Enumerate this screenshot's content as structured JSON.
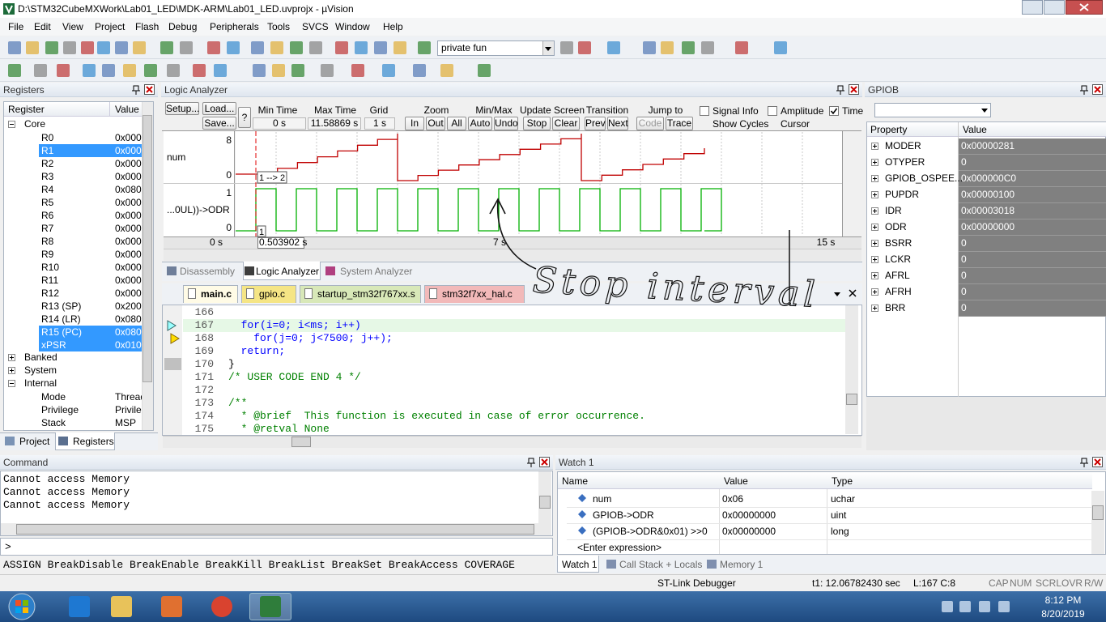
{
  "title_bar": {
    "title": "D:\\STM32CubeMXWork\\Lab01_LED\\MDK-ARM\\Lab01_LED.uvprojx - µVision"
  },
  "menu": [
    "File",
    "Edit",
    "View",
    "Project",
    "Flash",
    "Debug",
    "Peripherals",
    "Tools",
    "SVCS",
    "Window",
    "Help"
  ],
  "toolbar": {
    "find_combo": "private fun"
  },
  "registers_panel": {
    "title": "Registers",
    "columns": [
      "Register",
      "Value"
    ],
    "groups": [
      {
        "name": "Core",
        "items": [
          {
            "name": "R0",
            "value": "0x0000"
          },
          {
            "name": "R1",
            "value": "0x0000",
            "selected": true
          },
          {
            "name": "R2",
            "value": "0x0000"
          },
          {
            "name": "R3",
            "value": "0x0000"
          },
          {
            "name": "R4",
            "value": "0x0800"
          },
          {
            "name": "R5",
            "value": "0x0000"
          },
          {
            "name": "R6",
            "value": "0x0000"
          },
          {
            "name": "R7",
            "value": "0x0000"
          },
          {
            "name": "R8",
            "value": "0x0000"
          },
          {
            "name": "R9",
            "value": "0x0000"
          },
          {
            "name": "R10",
            "value": "0x0000"
          },
          {
            "name": "R11",
            "value": "0x0000"
          },
          {
            "name": "R12",
            "value": "0x0000"
          },
          {
            "name": "R13 (SP)",
            "value": "0x2000"
          },
          {
            "name": "R14 (LR)",
            "value": "0x0800"
          },
          {
            "name": "R15 (PC)",
            "value": "0x0800",
            "selected": true
          },
          {
            "name": "xPSR",
            "value": "0x0100",
            "selected": true
          }
        ]
      },
      {
        "name": "Banked"
      },
      {
        "name": "System"
      },
      {
        "name": "Internal",
        "items": [
          {
            "name": "Mode",
            "value": "Thread"
          },
          {
            "name": "Privilege",
            "value": "Privileg"
          },
          {
            "name": "Stack",
            "value": "MSP"
          }
        ]
      }
    ],
    "tabs": [
      "Project",
      "Registers"
    ]
  },
  "logic_analyzer": {
    "title": "Logic Analyzer",
    "buttons": {
      "setup": "Setup...",
      "load": "Load...",
      "save": "Save...",
      "help": "?"
    },
    "min_time": {
      "label": "Min Time",
      "value": "0 s"
    },
    "max_time": {
      "label": "Max Time",
      "value": "11.58869 s"
    },
    "grid": {
      "label": "Grid",
      "value": "1 s"
    },
    "groups": [
      {
        "label": "Zoom",
        "buttons": [
          "In",
          "Out",
          "All"
        ]
      },
      {
        "label": "Min/Max",
        "buttons": [
          "Auto",
          "Undo"
        ]
      },
      {
        "label": "Update Screen",
        "buttons": [
          "Stop",
          "Clear"
        ]
      },
      {
        "label": "Transition",
        "buttons": [
          "Prev",
          "Next"
        ]
      },
      {
        "label": "Jump to",
        "buttons": [
          "Code",
          "Trace"
        ]
      }
    ],
    "options": [
      {
        "label": "Signal Info",
        "checked": false
      },
      {
        "label": "Show Cycles"
      },
      {
        "label": "Amplitude",
        "checked": false
      },
      {
        "label": "Cursor"
      },
      {
        "label": "Time",
        "checked": true
      }
    ],
    "signals": [
      {
        "name": "num",
        "max": 8,
        "min": 0
      },
      {
        "name": "...0UL))->ODR",
        "max": 1,
        "min": 0
      }
    ],
    "cursor_labels": [
      "1 --> 2",
      "1"
    ],
    "cursor_time": "0.503902 s",
    "time_axis": [
      "0 s",
      "7 s",
      "15 s"
    ],
    "tabs": [
      "Disassembly",
      "Logic Analyzer",
      "System Analyzer"
    ]
  },
  "editor": {
    "tabs": [
      "main.c",
      "gpio.c",
      "startup_stm32f767xx.s",
      "stm32f7xx_hal.c"
    ],
    "lines": [
      {
        "number": 166
      },
      {
        "number": 167,
        "text": "  for(i=0; i<ms; i++)",
        "current": true
      },
      {
        "number": 168,
        "text": "    for(j=0; j<7500; j++);"
      },
      {
        "number": 169,
        "text": "  return;"
      },
      {
        "number": 170,
        "text": "}"
      },
      {
        "number": 171,
        "text": "/* USER CODE END 4 */"
      },
      {
        "number": 172
      },
      {
        "number": 173,
        "text": "/**"
      },
      {
        "number": 174,
        "text": "  * @brief  This function is executed in case of error occurrence."
      },
      {
        "number": 175,
        "text": "  * @retval None"
      }
    ]
  },
  "gpiob_panel": {
    "title": "GPIOB",
    "columns": [
      "Property",
      "Value"
    ],
    "rows": [
      {
        "name": "MODER",
        "value": "0x00000281"
      },
      {
        "name": "OTYPER",
        "value": "0"
      },
      {
        "name": "GPIOB_OSPEE...",
        "value": "0x000000C0"
      },
      {
        "name": "PUPDR",
        "value": "0x00000100"
      },
      {
        "name": "IDR",
        "value": "0x00003018"
      },
      {
        "name": "ODR",
        "value": "0x00000000"
      },
      {
        "name": "BSRR",
        "value": "0"
      },
      {
        "name": "LCKR",
        "value": "0"
      },
      {
        "name": "AFRL",
        "value": "0"
      },
      {
        "name": "AFRH",
        "value": "0"
      },
      {
        "name": "BRR",
        "value": "0"
      }
    ]
  },
  "command_panel": {
    "title": "Command",
    "output": [
      "Cannot access Memory",
      "Cannot access Memory",
      "Cannot access Memory"
    ],
    "prompt": ">",
    "hint": "ASSIGN BreakDisable BreakEnable BreakKill BreakList BreakSet BreakAccess COVERAGE"
  },
  "watch_panel": {
    "title": "Watch 1",
    "columns": [
      "Name",
      "Value",
      "Type"
    ],
    "rows": [
      {
        "name": "num",
        "value": "0x06",
        "type": "uchar"
      },
      {
        "name": "GPIOB->ODR",
        "value": "0x00000000",
        "type": "uint"
      },
      {
        "name": "(GPIOB->ODR&0x01) >>0",
        "value": "0x00000000",
        "type": "long"
      }
    ],
    "enter_expression": "<Enter expression>",
    "tabs": [
      "Watch 1",
      "Call Stack + Locals",
      "Memory 1"
    ]
  },
  "status_bar": {
    "debugger": "ST-Link Debugger",
    "time": "t1: 12.06782430 sec",
    "position": "L:167 C:8",
    "indicators": [
      "CAP",
      "NUM",
      "SCRL",
      "OVR",
      "R/W"
    ]
  },
  "taskbar": {
    "time": "8:12 PM",
    "date": "8/20/2019"
  },
  "annotation": "Stop interval"
}
